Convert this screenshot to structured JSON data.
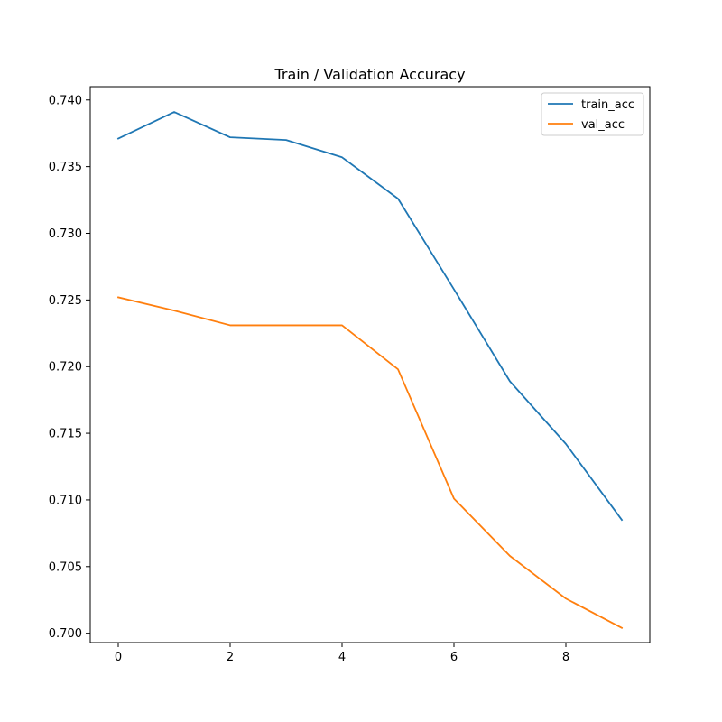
{
  "chart_data": {
    "type": "line",
    "title": "Train / Validation Accuracy",
    "xlabel": "",
    "ylabel": "",
    "x": [
      0,
      1,
      2,
      3,
      4,
      5,
      6,
      7,
      8,
      9
    ],
    "series": [
      {
        "name": "train_acc",
        "color": "#1f77b4",
        "values": [
          0.7371,
          0.7391,
          0.7372,
          0.737,
          0.7357,
          0.7326,
          0.7258,
          0.7189,
          0.7142,
          0.7085
        ]
      },
      {
        "name": "val_acc",
        "color": "#ff7f0e",
        "values": [
          0.7252,
          0.7242,
          0.7231,
          0.7231,
          0.7231,
          0.7198,
          0.7101,
          0.7058,
          0.7026,
          0.7004
        ]
      }
    ],
    "xlim": [
      -0.5,
      9.5
    ],
    "ylim": [
      0.6993,
      0.741
    ],
    "xticks": [
      0,
      2,
      4,
      6,
      8
    ],
    "yticks": [
      0.7,
      0.705,
      0.71,
      0.715,
      0.72,
      0.725,
      0.73,
      0.735,
      0.74
    ],
    "ytick_labels": [
      "0.700",
      "0.705",
      "0.710",
      "0.715",
      "0.720",
      "0.725",
      "0.730",
      "0.735",
      "0.740"
    ],
    "legend_position": "top-right",
    "grid": false
  }
}
